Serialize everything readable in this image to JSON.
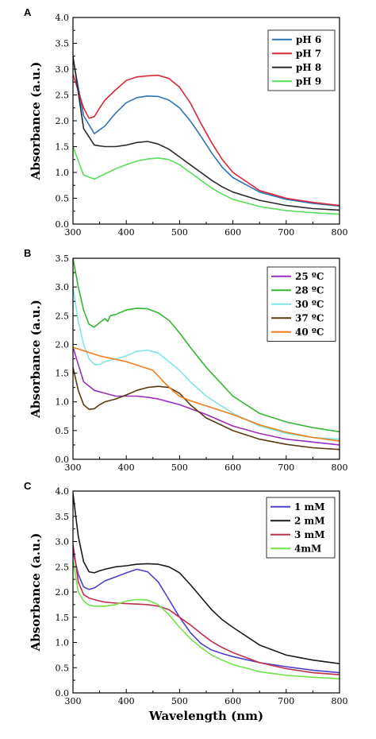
{
  "chart_data": [
    {
      "panel": "A",
      "type": "line",
      "xlabel": "",
      "ylabel": "Absorbance (a.u.)",
      "xlim": [
        300,
        800
      ],
      "ylim": [
        0.0,
        4.0
      ],
      "xticks": [
        300,
        400,
        500,
        600,
        700,
        800
      ],
      "yticks": [
        "0.0",
        "0.5",
        "1.0",
        "1.5",
        "2.0",
        "2.5",
        "3.0",
        "3.5",
        "4.0"
      ],
      "legend_position": "top-right",
      "series": [
        {
          "name": "pH 6",
          "color": "#2e75b6",
          "x": [
            300,
            320,
            340,
            360,
            380,
            400,
            420,
            440,
            460,
            480,
            500,
            520,
            540,
            560,
            580,
            600,
            650,
            700,
            750,
            800
          ],
          "y": [
            3.2,
            2.1,
            1.75,
            1.9,
            2.15,
            2.35,
            2.45,
            2.48,
            2.47,
            2.4,
            2.25,
            2.0,
            1.7,
            1.38,
            1.1,
            0.9,
            0.62,
            0.48,
            0.4,
            0.35
          ]
        },
        {
          "name": "pH 7",
          "color": "#d9283c",
          "x": [
            300,
            320,
            330,
            340,
            350,
            360,
            380,
            400,
            420,
            440,
            460,
            480,
            500,
            520,
            540,
            560,
            580,
            600,
            650,
            700,
            750,
            800
          ],
          "y": [
            2.9,
            2.25,
            2.05,
            2.08,
            2.25,
            2.4,
            2.6,
            2.78,
            2.85,
            2.87,
            2.88,
            2.82,
            2.65,
            2.35,
            1.95,
            1.58,
            1.25,
            1.0,
            0.65,
            0.5,
            0.42,
            0.36
          ]
        },
        {
          "name": "pH 8",
          "color": "#2b2b2b",
          "x": [
            300,
            320,
            340,
            360,
            380,
            400,
            420,
            440,
            460,
            480,
            500,
            520,
            540,
            560,
            580,
            600,
            650,
            700,
            750,
            800
          ],
          "y": [
            3.25,
            1.85,
            1.53,
            1.5,
            1.5,
            1.53,
            1.58,
            1.6,
            1.55,
            1.45,
            1.3,
            1.15,
            1.0,
            0.85,
            0.72,
            0.62,
            0.46,
            0.36,
            0.3,
            0.27
          ]
        },
        {
          "name": "pH 9",
          "color": "#57e05a",
          "x": [
            300,
            320,
            340,
            360,
            380,
            400,
            420,
            440,
            460,
            480,
            500,
            520,
            540,
            560,
            580,
            600,
            650,
            700,
            750,
            800
          ],
          "y": [
            1.5,
            0.95,
            0.87,
            0.97,
            1.07,
            1.15,
            1.22,
            1.26,
            1.28,
            1.25,
            1.15,
            1.0,
            0.85,
            0.7,
            0.58,
            0.48,
            0.34,
            0.26,
            0.22,
            0.19
          ]
        }
      ]
    },
    {
      "panel": "B",
      "type": "line",
      "xlabel": "",
      "ylabel": "Absorbance (a.u.)",
      "xlim": [
        300,
        800
      ],
      "ylim": [
        0.0,
        3.5
      ],
      "xticks": [
        300,
        400,
        500,
        600,
        700,
        800
      ],
      "yticks": [
        "0.0",
        "0.5",
        "1.0",
        "1.5",
        "2.0",
        "2.5",
        "3.0",
        "3.5"
      ],
      "legend_position": "top-right",
      "series": [
        {
          "name": "25 ºC",
          "color": "#9b2fbf",
          "x": [
            300,
            320,
            340,
            360,
            380,
            400,
            420,
            440,
            460,
            480,
            500,
            550,
            600,
            650,
            700,
            750,
            800
          ],
          "y": [
            1.95,
            1.35,
            1.2,
            1.15,
            1.1,
            1.1,
            1.1,
            1.08,
            1.05,
            1.0,
            0.95,
            0.78,
            0.58,
            0.45,
            0.35,
            0.3,
            0.25
          ]
        },
        {
          "name": "28 ºC",
          "color": "#33b833",
          "x": [
            300,
            310,
            320,
            330,
            340,
            350,
            360,
            365,
            370,
            380,
            400,
            420,
            440,
            460,
            480,
            500,
            520,
            550,
            600,
            650,
            700,
            750,
            800
          ],
          "y": [
            3.5,
            3.0,
            2.6,
            2.35,
            2.3,
            2.38,
            2.45,
            2.4,
            2.5,
            2.52,
            2.6,
            2.63,
            2.62,
            2.55,
            2.42,
            2.2,
            1.95,
            1.6,
            1.1,
            0.8,
            0.65,
            0.55,
            0.48
          ]
        },
        {
          "name": "30 ºC",
          "color": "#7fe6e6",
          "x": [
            300,
            310,
            320,
            330,
            340,
            350,
            360,
            380,
            400,
            420,
            440,
            460,
            480,
            500,
            520,
            550,
            600,
            650,
            700,
            750,
            800
          ],
          "y": [
            3.0,
            2.4,
            2.0,
            1.75,
            1.65,
            1.65,
            1.7,
            1.75,
            1.8,
            1.88,
            1.9,
            1.85,
            1.7,
            1.55,
            1.35,
            1.1,
            0.8,
            0.58,
            0.45,
            0.38,
            0.35
          ]
        },
        {
          "name": "37 ºC",
          "color": "#5a3a10",
          "x": [
            300,
            310,
            320,
            330,
            340,
            350,
            360,
            380,
            400,
            420,
            440,
            460,
            480,
            500,
            520,
            550,
            600,
            650,
            700,
            750,
            800
          ],
          "y": [
            1.6,
            1.2,
            0.95,
            0.87,
            0.88,
            0.95,
            1.0,
            1.05,
            1.12,
            1.2,
            1.25,
            1.27,
            1.25,
            1.15,
            0.95,
            0.72,
            0.5,
            0.35,
            0.26,
            0.2,
            0.17
          ]
        },
        {
          "name": "40 ºC",
          "color": "#f07d1a",
          "x": [
            300,
            350,
            400,
            450,
            470,
            490,
            500,
            520,
            550,
            600,
            650,
            700,
            750,
            800
          ],
          "y": [
            1.95,
            1.8,
            1.7,
            1.55,
            1.35,
            1.17,
            1.1,
            1.02,
            0.93,
            0.78,
            0.6,
            0.47,
            0.38,
            0.32
          ]
        }
      ]
    },
    {
      "panel": "C",
      "type": "line",
      "xlabel": "Wavelength (nm)",
      "ylabel": "Absorbance (a.u.)",
      "xlim": [
        300,
        800
      ],
      "ylim": [
        0.0,
        4.0
      ],
      "xticks": [
        300,
        400,
        500,
        600,
        700,
        800
      ],
      "yticks": [
        "0.0",
        "0.5",
        "1.0",
        "1.5",
        "2.0",
        "2.5",
        "3.0",
        "3.5",
        "4.0"
      ],
      "legend_position": "top-right",
      "series": [
        {
          "name": "1 mM",
          "color": "#4a3fcf",
          "x": [
            300,
            310,
            320,
            330,
            340,
            350,
            360,
            380,
            400,
            420,
            440,
            460,
            480,
            500,
            520,
            540,
            560,
            580,
            600,
            650,
            700,
            750,
            800
          ],
          "y": [
            2.8,
            2.35,
            2.1,
            2.05,
            2.08,
            2.15,
            2.22,
            2.3,
            2.38,
            2.45,
            2.4,
            2.2,
            1.85,
            1.5,
            1.2,
            0.98,
            0.85,
            0.78,
            0.72,
            0.6,
            0.52,
            0.45,
            0.4
          ]
        },
        {
          "name": "2 mM",
          "color": "#1a1a1a",
          "x": [
            300,
            310,
            320,
            330,
            340,
            350,
            360,
            380,
            400,
            420,
            440,
            460,
            480,
            500,
            520,
            540,
            560,
            580,
            600,
            650,
            700,
            750,
            800
          ],
          "y": [
            3.95,
            3.1,
            2.6,
            2.4,
            2.38,
            2.42,
            2.45,
            2.5,
            2.52,
            2.55,
            2.56,
            2.55,
            2.5,
            2.38,
            2.15,
            1.9,
            1.65,
            1.45,
            1.3,
            0.95,
            0.75,
            0.65,
            0.58
          ]
        },
        {
          "name": "3 mM",
          "color": "#c0304a",
          "x": [
            300,
            310,
            320,
            330,
            340,
            350,
            360,
            380,
            400,
            420,
            440,
            460,
            480,
            500,
            520,
            540,
            560,
            580,
            600,
            650,
            700,
            750,
            800
          ],
          "y": [
            2.95,
            2.2,
            1.95,
            1.88,
            1.85,
            1.82,
            1.8,
            1.78,
            1.77,
            1.76,
            1.75,
            1.72,
            1.65,
            1.5,
            1.35,
            1.18,
            1.02,
            0.9,
            0.8,
            0.6,
            0.48,
            0.4,
            0.36
          ]
        },
        {
          "name": "4mM",
          "color": "#73e34b",
          "x": [
            300,
            310,
            320,
            330,
            340,
            350,
            360,
            380,
            400,
            420,
            440,
            460,
            480,
            500,
            520,
            540,
            560,
            580,
            600,
            650,
            700,
            750,
            800
          ],
          "y": [
            2.65,
            2.0,
            1.82,
            1.74,
            1.72,
            1.72,
            1.72,
            1.75,
            1.82,
            1.85,
            1.84,
            1.75,
            1.55,
            1.3,
            1.08,
            0.9,
            0.75,
            0.65,
            0.56,
            0.42,
            0.35,
            0.31,
            0.28
          ]
        }
      ]
    }
  ]
}
